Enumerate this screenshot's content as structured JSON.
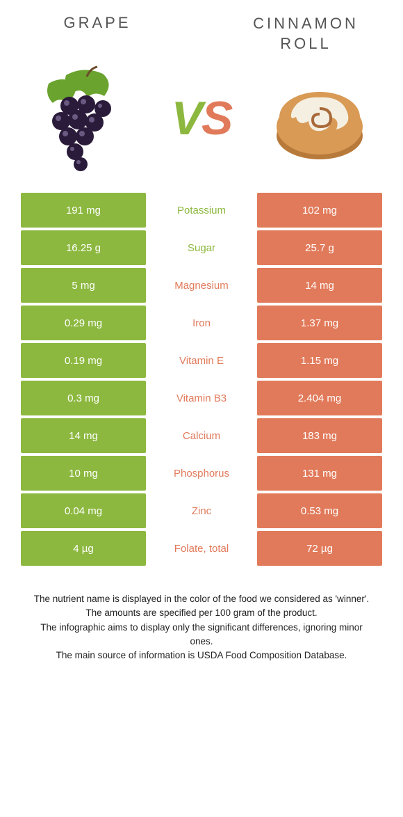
{
  "colors": {
    "left": "#8cb83f",
    "right": "#e17a5a",
    "background": "#ffffff",
    "heading": "#555555",
    "footer": "#222222"
  },
  "header": {
    "left_title": "Grape",
    "right_title_line1": "Cinnamon",
    "right_title_line2": "roll"
  },
  "vs": {
    "v": "V",
    "s": "S"
  },
  "rows": [
    {
      "left": "191 mg",
      "label": "Potassium",
      "right": "102 mg",
      "winner": "left"
    },
    {
      "left": "16.25 g",
      "label": "Sugar",
      "right": "25.7 g",
      "winner": "left"
    },
    {
      "left": "5 mg",
      "label": "Magnesium",
      "right": "14 mg",
      "winner": "right"
    },
    {
      "left": "0.29 mg",
      "label": "Iron",
      "right": "1.37 mg",
      "winner": "right"
    },
    {
      "left": "0.19 mg",
      "label": "Vitamin E",
      "right": "1.15 mg",
      "winner": "right"
    },
    {
      "left": "0.3 mg",
      "label": "Vitamin B3",
      "right": "2.404 mg",
      "winner": "right"
    },
    {
      "left": "14 mg",
      "label": "Calcium",
      "right": "183 mg",
      "winner": "right"
    },
    {
      "left": "10 mg",
      "label": "Phosphorus",
      "right": "131 mg",
      "winner": "right"
    },
    {
      "left": "0.04 mg",
      "label": "Zinc",
      "right": "0.53 mg",
      "winner": "right"
    },
    {
      "left": "4 µg",
      "label": "Folate, total",
      "right": "72 µg",
      "winner": "right"
    }
  ],
  "footer": {
    "line1": "The nutrient name is displayed in the color of the food we considered as 'winner'.",
    "line2": "The amounts are specified per 100 gram of the product.",
    "line3": "The infographic aims to display only the significant differences, ignoring minor ones.",
    "line4": "The main source of information is USDA Food Composition Database."
  }
}
